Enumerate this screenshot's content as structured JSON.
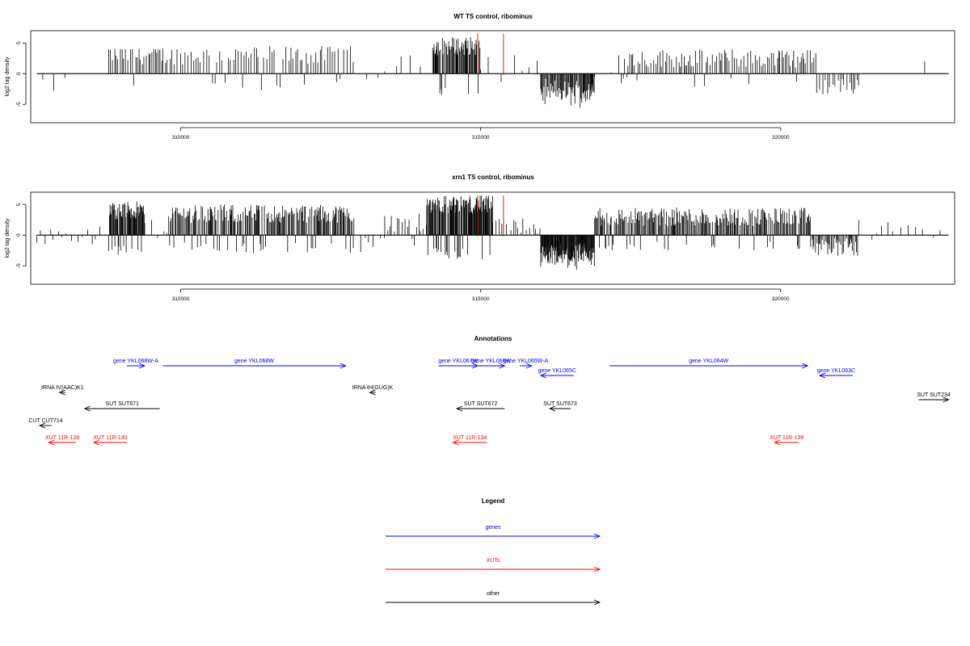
{
  "colors": {
    "gene": "#0000ff",
    "xut": "#ff0000",
    "other": "#000000",
    "marker": "#ff0000"
  },
  "chart_data": [
    {
      "type": "bar",
      "title": "WT TS control, ribominus",
      "ylabel": "log2 tag density",
      "xlim": [
        307500,
        322900
      ],
      "ylim": [
        -8,
        7
      ],
      "x_ticks": [
        310000,
        315000,
        320000
      ],
      "x_tick_labels": [
        "310000",
        "315000",
        "320000"
      ],
      "y_ticks": [
        -5,
        0,
        5
      ],
      "y_tick_labels": [
        "-5",
        "0",
        "5"
      ],
      "markers": [
        314950,
        315380
      ],
      "clusters": [
        {
          "range": [
            307700,
            308200
          ],
          "h": 0.5,
          "density": 0.05,
          "sign": "down",
          "max": 3
        },
        {
          "range": [
            308800,
            309700
          ],
          "h": 3,
          "density": 0.25,
          "sign": "both",
          "max": 4
        },
        {
          "range": [
            309700,
            312900
          ],
          "h": 3,
          "density": 0.2,
          "sign": "both",
          "max": 5
        },
        {
          "range": [
            313100,
            313400
          ],
          "h": 0,
          "density": 0.06,
          "sign": "down",
          "max": 5
        },
        {
          "range": [
            313400,
            314200
          ],
          "h": 1.5,
          "density": 0.06,
          "sign": "both",
          "max": 4
        },
        {
          "range": [
            314200,
            315000
          ],
          "h": 4.5,
          "density": 0.6,
          "sign": "both",
          "max": 6
        },
        {
          "range": [
            315000,
            316000
          ],
          "h": 1.5,
          "density": 0.05,
          "sign": "both",
          "max": 3
        },
        {
          "range": [
            316000,
            316900
          ],
          "h": -3.5,
          "density": 0.6,
          "sign": "down",
          "max": 6
        },
        {
          "range": [
            316900,
            317300
          ],
          "h": 0,
          "density": 0.02,
          "sign": "both",
          "max": 1
        },
        {
          "range": [
            317300,
            320600
          ],
          "h": 2.5,
          "density": 0.25,
          "sign": "both",
          "max": 4
        },
        {
          "range": [
            320600,
            321300
          ],
          "h": -2,
          "density": 0.2,
          "sign": "both",
          "max": 5
        },
        {
          "range": [
            322400,
            322600
          ],
          "h": 1,
          "density": 0.05,
          "sign": "both",
          "max": 2
        }
      ]
    },
    {
      "type": "bar",
      "title": "xrn1 TS control, ribominus",
      "ylabel": "log2 tag density",
      "xlim": [
        307500,
        322900
      ],
      "ylim": [
        -8,
        7
      ],
      "x_ticks": [
        310000,
        315000,
        320000
      ],
      "x_tick_labels": [
        "310000",
        "315000",
        "320000"
      ],
      "y_ticks": [
        -5,
        0,
        5
      ],
      "y_tick_labels": [
        "-5",
        "0",
        "5"
      ],
      "markers": [
        314950,
        315380
      ],
      "clusters": [
        {
          "range": [
            307600,
            308700
          ],
          "h": 0,
          "density": 0.12,
          "sign": "both",
          "max": 4
        },
        {
          "range": [
            308800,
            309400
          ],
          "h": 4,
          "density": 0.9,
          "sign": "both",
          "max": 6.5
        },
        {
          "range": [
            309400,
            309800
          ],
          "h": 1,
          "density": 0.1,
          "sign": "both",
          "max": 3
        },
        {
          "range": [
            309800,
            312900
          ],
          "h": 3.5,
          "density": 0.5,
          "sign": "both",
          "max": 6.5
        },
        {
          "range": [
            313000,
            313400
          ],
          "h": -1.5,
          "density": 0.1,
          "sign": "both",
          "max": 5
        },
        {
          "range": [
            313400,
            314100
          ],
          "h": 2,
          "density": 0.2,
          "sign": "both",
          "max": 5
        },
        {
          "range": [
            314100,
            315200
          ],
          "h": 5,
          "density": 0.9,
          "sign": "both",
          "max": 7
        },
        {
          "range": [
            315200,
            316000
          ],
          "h": 1.5,
          "density": 0.15,
          "sign": "both",
          "max": 4
        },
        {
          "range": [
            316000,
            316900
          ],
          "h": -4,
          "density": 0.9,
          "sign": "down",
          "max": 8
        },
        {
          "range": [
            316900,
            320500
          ],
          "h": 3,
          "density": 0.5,
          "sign": "both",
          "max": 5
        },
        {
          "range": [
            320500,
            321300
          ],
          "h": -2,
          "density": 0.4,
          "sign": "both",
          "max": 5
        },
        {
          "range": [
            321300,
            322700
          ],
          "h": 1,
          "density": 0.08,
          "sign": "both",
          "max": 3
        }
      ]
    }
  ],
  "annotations": {
    "title": "Annotations",
    "xlim": [
      307500,
      322900
    ],
    "items": [
      {
        "label": "gene YKL068W-A",
        "type": "gene",
        "start": 309100,
        "end": 309400,
        "strand": "+",
        "row": 0
      },
      {
        "label": "gene YKL068W",
        "type": "gene",
        "start": 309700,
        "end": 312750,
        "strand": "+",
        "row": 0
      },
      {
        "label": "gene YKL067W",
        "type": "gene",
        "start": 314300,
        "end": 314950,
        "strand": "+",
        "row": 0
      },
      {
        "label": "gene YKL066W",
        "type": "gene",
        "start": 314950,
        "end": 315400,
        "strand": "+",
        "row": 0
      },
      {
        "label": "gene YKL065W-A",
        "type": "gene",
        "start": 315650,
        "end": 315850,
        "strand": "+",
        "row": 0
      },
      {
        "label": "gene YKL065C",
        "type": "gene",
        "start": 316000,
        "end": 316550,
        "strand": "-",
        "row": 1
      },
      {
        "label": "gene YKL064W",
        "type": "gene",
        "start": 317150,
        "end": 320450,
        "strand": "+",
        "row": 0
      },
      {
        "label": "gene YKL063C",
        "type": "gene",
        "start": 320650,
        "end": 321200,
        "strand": "-",
        "row": 1
      },
      {
        "label": "tRNA tV(AAC)K1",
        "type": "other",
        "start": 307980,
        "end": 308080,
        "strand": "-",
        "row": 2
      },
      {
        "label": "tRNA tH(GUG)K",
        "type": "other",
        "start": 313150,
        "end": 313250,
        "strand": "-",
        "row": 2
      },
      {
        "label": "SUT SUT671",
        "type": "other",
        "start": 308400,
        "end": 309650,
        "strand": "-",
        "row": 3
      },
      {
        "label": "SUT SUT672",
        "type": "other",
        "start": 314600,
        "end": 315400,
        "strand": "-",
        "row": 3
      },
      {
        "label": "SUT SUT673",
        "type": "other",
        "start": 316150,
        "end": 316500,
        "strand": "-",
        "row": 3
      },
      {
        "label": "SUT SUT234",
        "type": "other",
        "start": 322300,
        "end": 322800,
        "strand": "+",
        "row": 3.5
      },
      {
        "label": "CUT CUT714",
        "type": "other",
        "start": 307650,
        "end": 307850,
        "strand": "-",
        "row": 4
      },
      {
        "label": "XUT 11R-128",
        "type": "xut",
        "start": 307800,
        "end": 308250,
        "strand": "-",
        "row": 5
      },
      {
        "label": "XUT 11R-130",
        "type": "xut",
        "start": 308550,
        "end": 309100,
        "strand": "-",
        "row": 5
      },
      {
        "label": "XUT 11R-134",
        "type": "xut",
        "start": 314540,
        "end": 315100,
        "strand": "-",
        "row": 5
      },
      {
        "label": "XUT 11R-139",
        "type": "xut",
        "start": 319900,
        "end": 320300,
        "strand": "-",
        "row": 5
      }
    ]
  },
  "legend": {
    "title": "Legend",
    "entries": [
      {
        "label": "genes",
        "type": "gene"
      },
      {
        "label": "XUTs",
        "type": "xut"
      },
      {
        "label": "other",
        "type": "other"
      }
    ]
  }
}
